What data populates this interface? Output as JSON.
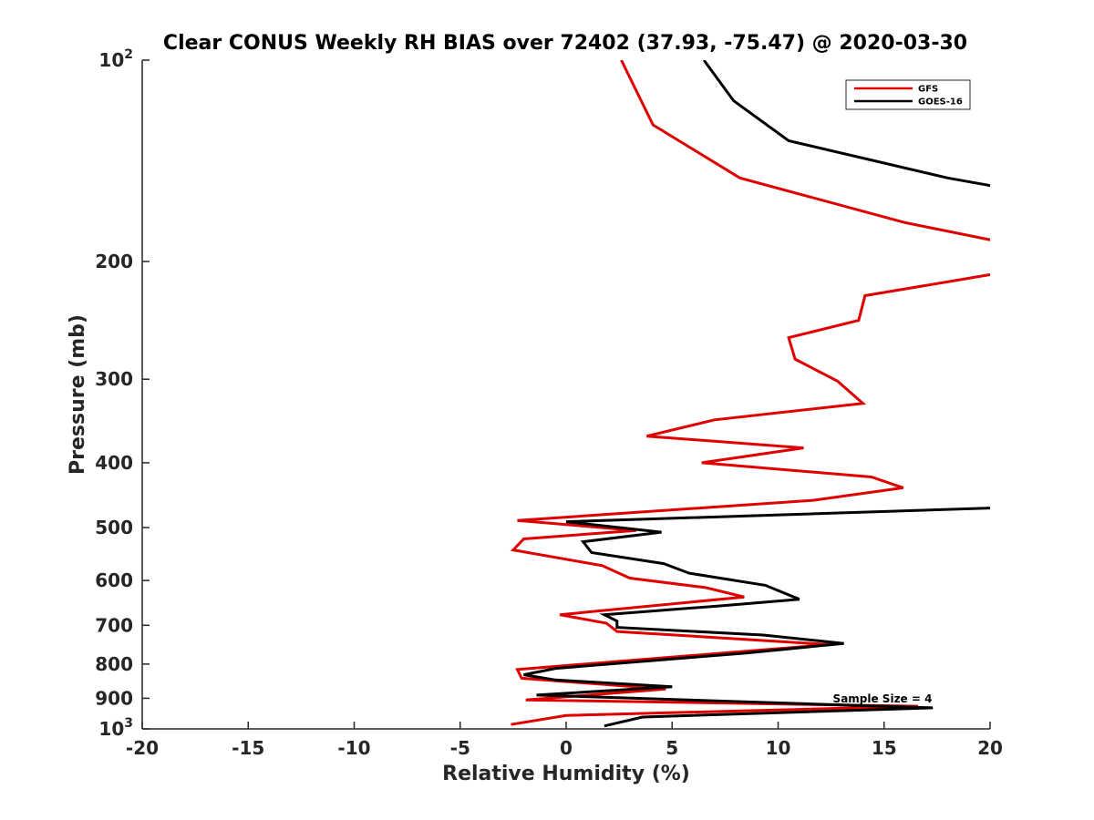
{
  "chart_data": {
    "type": "line",
    "title": "Clear CONUS Weekly RH BIAS over 72402 (37.93, -75.47) @ 2020-03-30",
    "xlabel": "Relative Humidity (%)",
    "ylabel": "Pressure (mb)",
    "xlim": [
      -20,
      20
    ],
    "ylim": [
      100,
      1000
    ],
    "y_scale": "log",
    "y_reversed": true,
    "x_ticks": [
      -20,
      -15,
      -10,
      -5,
      0,
      5,
      10,
      15,
      20
    ],
    "x_tick_labels": [
      "-20",
      "-15",
      "-10",
      "-5",
      "0",
      "5",
      "10",
      "15",
      "20"
    ],
    "y_ticks": [
      {
        "value": 100,
        "base": "10",
        "exp": "2"
      },
      {
        "value": 200,
        "label": "200"
      },
      {
        "value": 300,
        "label": "300"
      },
      {
        "value": 400,
        "label": "400"
      },
      {
        "value": 500,
        "label": "500"
      },
      {
        "value": 600,
        "label": "600"
      },
      {
        "value": 700,
        "label": "700"
      },
      {
        "value": 800,
        "label": "800"
      },
      {
        "value": 900,
        "label": "900"
      },
      {
        "value": 1000,
        "base": "10",
        "exp": "3"
      }
    ],
    "legend": {
      "position": "top-right"
    },
    "annotation": "Sample Size = 4",
    "series": [
      {
        "name": "GFS",
        "color": "#e00000",
        "points": [
          [
            2.6,
            100
          ],
          [
            4.1,
            125
          ],
          [
            8.2,
            150
          ],
          [
            16.0,
            175
          ],
          [
            20.5,
            187
          ],
          [
            20.5,
            208
          ],
          [
            14.1,
            225
          ],
          [
            13.8,
            245
          ],
          [
            10.5,
            260
          ],
          [
            10.8,
            280
          ],
          [
            12.8,
            302
          ],
          [
            14.0,
            326
          ],
          [
            7.0,
            345
          ],
          [
            3.8,
            365
          ],
          [
            11.2,
            380
          ],
          [
            6.4,
            400
          ],
          [
            14.4,
            420
          ],
          [
            15.9,
            436
          ],
          [
            11.7,
            455
          ],
          [
            -2.3,
            488
          ],
          [
            3.3,
            505
          ],
          [
            -2.0,
            520
          ],
          [
            -2.5,
            540
          ],
          [
            1.7,
            570
          ],
          [
            3.0,
            595
          ],
          [
            6.6,
            615
          ],
          [
            8.4,
            635
          ],
          [
            -0.3,
            675
          ],
          [
            1.9,
            695
          ],
          [
            2.4,
            715
          ],
          [
            12.4,
            748
          ],
          [
            -2.3,
            815
          ],
          [
            -2.1,
            840
          ],
          [
            4.7,
            872
          ],
          [
            -1.9,
            905
          ],
          [
            16.6,
            925
          ],
          [
            0.0,
            955
          ],
          [
            -2.6,
            985
          ]
        ]
      },
      {
        "name": "GOES-16",
        "color": "#000000",
        "points": [
          [
            6.5,
            100
          ],
          [
            7.9,
            115
          ],
          [
            10.5,
            132
          ],
          [
            18.0,
            150
          ],
          [
            20.5,
            155
          ],
          [
            20.5,
            467
          ],
          [
            0.0,
            490
          ],
          [
            4.5,
            508
          ],
          [
            0.8,
            525
          ],
          [
            1.2,
            545
          ],
          [
            4.6,
            566
          ],
          [
            5.8,
            585
          ],
          [
            9.4,
            610
          ],
          [
            11.0,
            640
          ],
          [
            7.2,
            655
          ],
          [
            1.8,
            675
          ],
          [
            2.4,
            690
          ],
          [
            2.4,
            705
          ],
          [
            9.3,
            724
          ],
          [
            13.1,
            745
          ],
          [
            8.5,
            770
          ],
          [
            -0.5,
            812
          ],
          [
            -2.0,
            830
          ],
          [
            -0.5,
            845
          ],
          [
            5.0,
            865
          ],
          [
            -1.4,
            890
          ],
          [
            17.3,
            930
          ],
          [
            3.6,
            960
          ],
          [
            1.8,
            990
          ]
        ]
      }
    ]
  }
}
